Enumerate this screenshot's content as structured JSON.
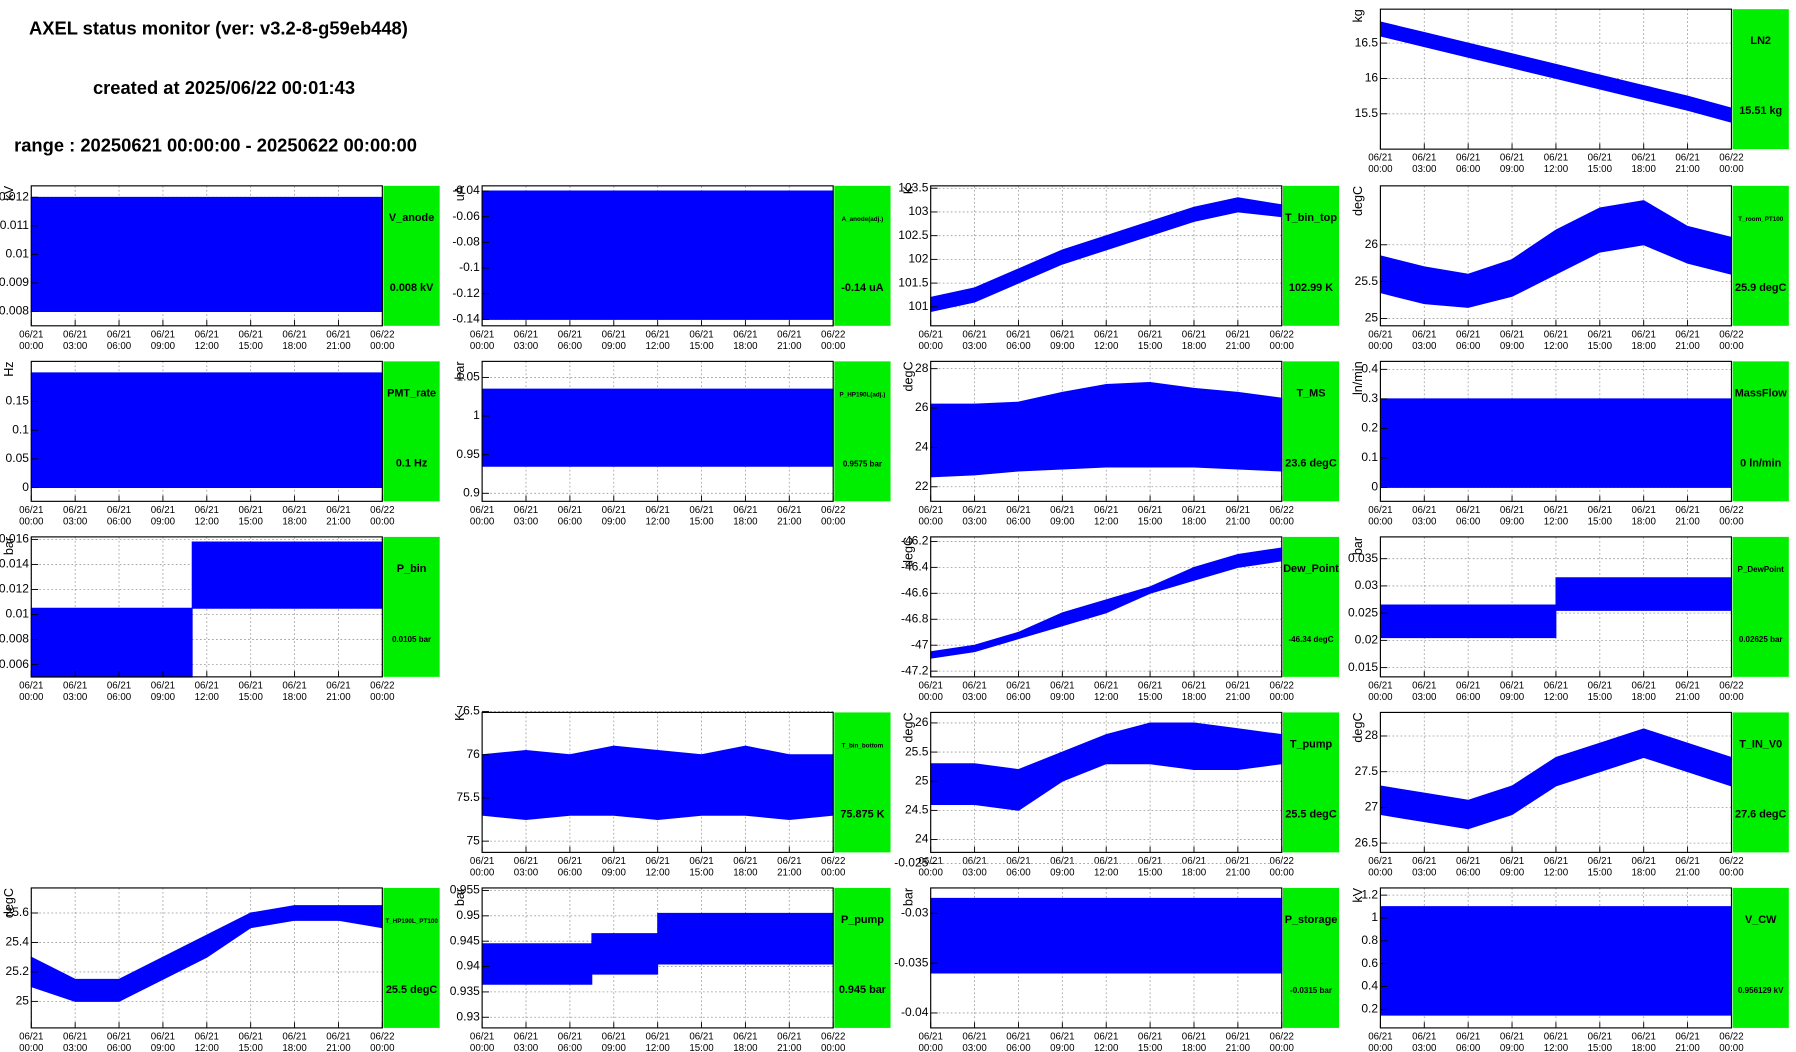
{
  "header": {
    "title": "AXEL status monitor (ver: v3.2-8-g59eb448)",
    "created": "created at 2025/06/22 00:01:43",
    "range": "range : 20250621 00:00:00 - 20250622 00:00:00"
  },
  "time_axis": {
    "xlim": [
      0,
      24
    ],
    "ticks": [
      {
        "value": 0,
        "date": "06/21",
        "time": "00:00"
      },
      {
        "value": 3,
        "date": "06/21",
        "time": "03:00"
      },
      {
        "value": 6,
        "date": "06/21",
        "time": "06:00"
      },
      {
        "value": 9,
        "date": "06/21",
        "time": "09:00"
      },
      {
        "value": 12,
        "date": "06/21",
        "time": "12:00"
      },
      {
        "value": 15,
        "date": "06/21",
        "time": "15:00"
      },
      {
        "value": 18,
        "date": "06/21",
        "time": "18:00"
      },
      {
        "value": 21,
        "date": "06/21",
        "time": "21:00"
      },
      {
        "value": 24,
        "date": "06/22",
        "time": "00:00"
      }
    ]
  },
  "chart_data": [
    {
      "type": "band",
      "name": "LN2",
      "current": "15.51 kg",
      "ylabel": "kg",
      "color": "#0000ff",
      "status_color": "#00ee00",
      "grid": true,
      "x": [
        0,
        3,
        6,
        9,
        12,
        15,
        18,
        21,
        24
      ],
      "low": [
        16.6,
        16.45,
        16.3,
        16.15,
        16.0,
        15.85,
        15.7,
        15.55,
        15.38
      ],
      "high": [
        16.8,
        16.65,
        16.5,
        16.35,
        16.2,
        16.05,
        15.9,
        15.75,
        15.58
      ],
      "ylim": [
        15.0,
        16.98
      ],
      "yticks": [
        15.5,
        16,
        16.5
      ]
    },
    {
      "type": "band",
      "name": "V_anode",
      "current": "0.008 kV",
      "ylabel": "kV",
      "color": "#0000ff",
      "status_color": "#00ee00",
      "grid": true,
      "x": [
        0,
        24
      ],
      "low": [
        0.008,
        0.008
      ],
      "high": [
        0.012,
        0.012
      ],
      "ylim": [
        0.0075,
        0.0124
      ],
      "yticks": [
        0.008,
        0.009,
        0.01,
        0.011,
        0.012
      ]
    },
    {
      "type": "band",
      "name": "A_anode(adj.)",
      "current": "-0.14 uA",
      "ylabel": "uA",
      "color": "#0000ff",
      "status_color": "#00ee00",
      "grid": true,
      "x": [
        0,
        24
      ],
      "low": [
        -0.14,
        -0.14
      ],
      "high": [
        -0.04,
        -0.04
      ],
      "ylim": [
        -0.145,
        -0.036
      ],
      "yticks": [
        -0.14,
        -0.12,
        -0.1,
        -0.08,
        -0.06,
        -0.04
      ]
    },
    {
      "type": "band",
      "name": "T_bin_top",
      "current": "102.99 K",
      "ylabel": "K",
      "color": "#0000ff",
      "status_color": "#00ee00",
      "grid": true,
      "x": [
        0,
        3,
        6,
        9,
        12,
        15,
        18,
        21,
        24
      ],
      "low": [
        100.9,
        101.1,
        101.5,
        101.9,
        102.2,
        102.5,
        102.8,
        103.0,
        102.9
      ],
      "high": [
        101.2,
        101.4,
        101.8,
        102.2,
        102.5,
        102.8,
        103.1,
        103.3,
        103.15
      ],
      "ylim": [
        100.6,
        103.55
      ],
      "yticks": [
        101,
        101.5,
        102,
        102.5,
        103,
        103.5
      ]
    },
    {
      "type": "band",
      "name": "T_room_PT100",
      "current": "25.9 degC",
      "ylabel": "degC",
      "color": "#0000ff",
      "status_color": "#00ee00",
      "grid": true,
      "x": [
        0,
        3,
        6,
        9,
        12,
        15,
        18,
        21,
        24
      ],
      "low": [
        25.35,
        25.2,
        25.15,
        25.3,
        25.6,
        25.9,
        26.0,
        25.75,
        25.6
      ],
      "high": [
        25.85,
        25.7,
        25.6,
        25.8,
        26.2,
        26.5,
        26.6,
        26.25,
        26.1
      ],
      "ylim": [
        24.9,
        26.8
      ],
      "yticks": [
        25,
        25.5,
        26
      ]
    },
    {
      "type": "band",
      "name": "PMT_rate",
      "current": "0.1 Hz",
      "ylabel": "Hz",
      "color": "#0000ff",
      "status_color": "#00ee00",
      "grid": true,
      "x": [
        0,
        24
      ],
      "low": [
        0,
        0
      ],
      "high": [
        0.2,
        0.2
      ],
      "ylim": [
        -0.024,
        0.22
      ],
      "yticks": [
        0,
        0.05,
        0.1,
        0.15
      ]
    },
    {
      "type": "band",
      "name": "P_HP190L(adj.)",
      "current": "0.9575 bar",
      "ylabel": "bar",
      "color": "#0000ff",
      "status_color": "#00ee00",
      "grid": true,
      "x": [
        0,
        24
      ],
      "low": [
        0.935,
        0.935
      ],
      "high": [
        1.035,
        1.035
      ],
      "ylim": [
        0.8896,
        1.0708
      ],
      "yticks": [
        0.9,
        0.95,
        1,
        1.05
      ]
    },
    {
      "type": "band",
      "name": "T_MS",
      "current": "23.6 degC",
      "ylabel": "degC",
      "color": "#0000ff",
      "status_color": "#00ee00",
      "grid": true,
      "x": [
        0,
        3,
        6,
        9,
        12,
        15,
        18,
        21,
        24
      ],
      "low": [
        22.5,
        22.6,
        22.8,
        22.9,
        23.0,
        23.0,
        23.0,
        22.9,
        22.8
      ],
      "high": [
        26.2,
        26.2,
        26.3,
        26.8,
        27.2,
        27.3,
        27.0,
        26.8,
        26.5
      ],
      "ylim": [
        21.26,
        28.37
      ],
      "yticks": [
        22,
        24,
        26,
        28
      ]
    },
    {
      "type": "band",
      "name": "MassFlow",
      "current": "0 ln/min",
      "ylabel": "ln/min",
      "color": "#0000ff",
      "status_color": "#00ee00",
      "grid": true,
      "x": [
        0,
        24
      ],
      "low": [
        0,
        0
      ],
      "high": [
        0.3,
        0.3
      ],
      "ylim": [
        -0.047,
        0.427
      ],
      "yticks": [
        0,
        0.1,
        0.2,
        0.3,
        0.4
      ]
    },
    {
      "type": "band",
      "name": "P_bin",
      "current": "0.0105 bar",
      "ylabel": "bar",
      "color": "#0000ff",
      "status_color": "#00ee00",
      "grid": true,
      "x": [
        0,
        11,
        11,
        24
      ],
      "low": [
        0.005,
        0.005,
        0.0105,
        0.0105
      ],
      "high": [
        0.0105,
        0.0105,
        0.0158,
        0.0158
      ],
      "ylim": [
        0.00502,
        0.0162
      ],
      "yticks": [
        0.006,
        0.008,
        0.01,
        0.012,
        0.014,
        0.016
      ]
    },
    {
      "type": "band",
      "name": "Dew_Point",
      "current": "-46.34 degC",
      "ylabel": "degC",
      "color": "#0000ff",
      "status_color": "#00ee00",
      "grid": true,
      "x": [
        0,
        3,
        6,
        9,
        12,
        15,
        18,
        21,
        24
      ],
      "low": [
        -47.1,
        -47.05,
        -46.95,
        -46.85,
        -46.75,
        -46.6,
        -46.5,
        -46.4,
        -46.35
      ],
      "high": [
        -47.05,
        -47.0,
        -46.9,
        -46.75,
        -46.65,
        -46.55,
        -46.4,
        -46.3,
        -46.25
      ],
      "ylim": [
        -47.244,
        -46.165
      ],
      "yticks": [
        -47.2,
        -47,
        -46.8,
        -46.6,
        -46.4,
        -46.2
      ]
    },
    {
      "type": "band",
      "name": "P_DewPoint",
      "current": "0.02625 bar",
      "ylabel": "bar",
      "color": "#0000ff",
      "status_color": "#00ee00",
      "grid": true,
      "x": [
        0,
        12,
        12,
        24
      ],
      "low": [
        0.0205,
        0.0205,
        0.0255,
        0.0255
      ],
      "high": [
        0.0265,
        0.0265,
        0.0315,
        0.0315
      ],
      "ylim": [
        0.0133,
        0.039
      ],
      "yticks": [
        0.015,
        0.02,
        0.025,
        0.03,
        0.035
      ]
    },
    {
      "type": "band",
      "name": "T_bin_bottom",
      "current": "75.875 K",
      "ylabel": "K",
      "color": "#0000ff",
      "status_color": "#00ee00",
      "grid": true,
      "x": [
        0,
        3,
        6,
        9,
        12,
        15,
        18,
        21,
        24
      ],
      "low": [
        75.3,
        75.25,
        75.3,
        75.3,
        75.25,
        75.3,
        75.3,
        75.25,
        75.3
      ],
      "high": [
        76.0,
        76.05,
        76.0,
        76.1,
        76.05,
        76.0,
        76.1,
        76.0,
        76.0
      ],
      "ylim": [
        74.87,
        76.49
      ],
      "yticks": [
        75,
        75.5,
        76,
        76.5
      ]
    },
    {
      "type": "band",
      "name": "T_pump",
      "current": "25.5 degC",
      "ylabel": "degC",
      "color": "#0000ff",
      "status_color": "#00ee00",
      "grid": true,
      "x": [
        0,
        3,
        6,
        9,
        12,
        15,
        18,
        21,
        24
      ],
      "low": [
        24.6,
        24.6,
        24.5,
        25.0,
        25.3,
        25.3,
        25.2,
        25.2,
        25.3
      ],
      "high": [
        25.3,
        25.3,
        25.2,
        25.5,
        25.8,
        26.0,
        26.0,
        25.9,
        25.8
      ],
      "ylim": [
        23.78,
        26.18
      ],
      "yticks": [
        24,
        24.5,
        25,
        25.5,
        26
      ]
    },
    {
      "type": "band",
      "name": "T_IN_V0",
      "current": "27.6 degC",
      "ylabel": "degC",
      "color": "#0000ff",
      "status_color": "#00ee00",
      "grid": true,
      "x": [
        0,
        3,
        6,
        9,
        12,
        15,
        18,
        21,
        24
      ],
      "low": [
        26.9,
        26.8,
        26.7,
        26.9,
        27.3,
        27.5,
        27.7,
        27.5,
        27.3
      ],
      "high": [
        27.3,
        27.2,
        27.1,
        27.3,
        27.7,
        27.9,
        28.1,
        27.9,
        27.7
      ],
      "ylim": [
        26.37,
        28.33
      ],
      "yticks": [
        26.5,
        27,
        27.5,
        28
      ]
    },
    {
      "type": "band",
      "name": "T_HP190L_PT100",
      "current": "25.5 degC",
      "ylabel": "degC",
      "color": "#0000ff",
      "status_color": "#00ee00",
      "grid": true,
      "x": [
        0,
        3,
        6,
        9,
        12,
        15,
        18,
        21,
        24
      ],
      "low": [
        25.1,
        25.0,
        25.0,
        25.15,
        25.3,
        25.5,
        25.55,
        25.55,
        25.5
      ],
      "high": [
        25.3,
        25.15,
        25.15,
        25.3,
        25.45,
        25.6,
        25.65,
        25.65,
        25.65
      ],
      "ylim": [
        24.82,
        25.77
      ],
      "yticks": [
        25,
        25.2,
        25.4,
        25.6
      ]
    },
    {
      "type": "band",
      "name": "P_pump",
      "current": "0.945 bar",
      "ylabel": "bar",
      "color": "#0000ff",
      "status_color": "#00ee00",
      "grid": true,
      "x": [
        0,
        7.5,
        7.5,
        12,
        12,
        24
      ],
      "low": [
        0.9365,
        0.9365,
        0.9385,
        0.9385,
        0.9405,
        0.9405
      ],
      "high": [
        0.9445,
        0.9445,
        0.9465,
        0.9465,
        0.9505,
        0.9505
      ],
      "ylim": [
        0.9279,
        0.9555
      ],
      "yticks": [
        0.93,
        0.935,
        0.94,
        0.945,
        0.95,
        0.955
      ]
    },
    {
      "type": "band",
      "name": "P_storage",
      "current": "-0.0315 bar",
      "ylabel": "bar",
      "color": "#0000ff",
      "status_color": "#00ee00",
      "grid": true,
      "x": [
        0,
        24
      ],
      "low": [
        -0.036,
        -0.036
      ],
      "high": [
        -0.0285,
        -0.0285
      ],
      "ylim": [
        -0.0415,
        -0.02746
      ],
      "yticks": [
        -0.04,
        -0.035,
        -0.03,
        -0.025
      ]
    },
    {
      "type": "band",
      "name": "V_CW",
      "current": "0.956129 kV",
      "ylabel": "kV",
      "color": "#0000ff",
      "status_color": "#00ee00",
      "grid": true,
      "x": [
        0,
        24
      ],
      "low": [
        0.15,
        0.15
      ],
      "high": [
        1.1,
        1.1
      ],
      "ylim": [
        0.038,
        1.263
      ],
      "yticks": [
        0.2,
        0.4,
        0.6,
        0.8,
        1,
        1.2
      ]
    }
  ]
}
